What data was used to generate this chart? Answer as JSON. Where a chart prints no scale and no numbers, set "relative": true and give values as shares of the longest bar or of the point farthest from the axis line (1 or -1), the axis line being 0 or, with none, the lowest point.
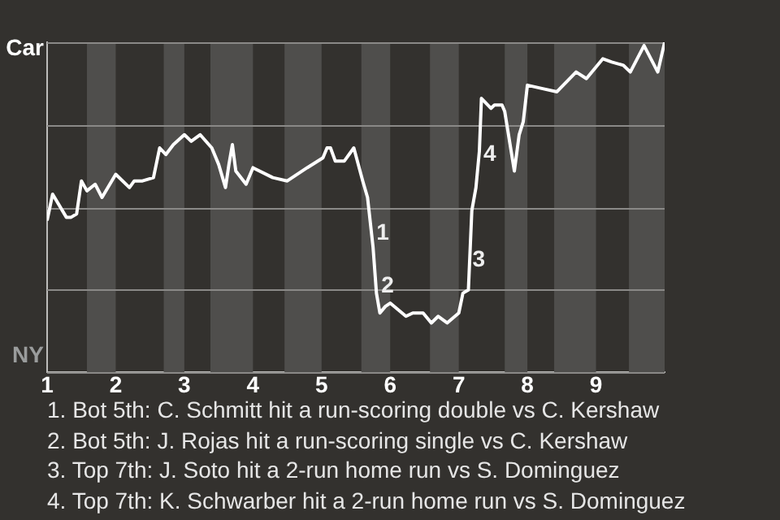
{
  "chart_data": {
    "type": "line",
    "relative": true,
    "grid": "y",
    "legend": false,
    "marker": "none",
    "line_style": "solid",
    "xlim": [
      1,
      10
    ],
    "xticks": [
      1,
      2,
      3,
      4,
      5,
      6,
      7,
      8,
      9
    ],
    "bands": [
      {
        "axis": "x",
        "from": 1.58,
        "to": 2,
        "color": "#4f4e4c"
      },
      {
        "axis": "x",
        "from": 2.7,
        "to": 3,
        "color": "#4f4e4c"
      },
      {
        "axis": "x",
        "from": 3.38,
        "to": 4,
        "color": "#4f4e4c"
      },
      {
        "axis": "x",
        "from": 4.46,
        "to": 5,
        "color": "#4f4e4c"
      },
      {
        "axis": "x",
        "from": 5.58,
        "to": 6,
        "color": "#4f4e4c"
      },
      {
        "axis": "x",
        "from": 6.58,
        "to": 7,
        "color": "#4f4e4c"
      },
      {
        "axis": "x",
        "from": 7.67,
        "to": 8,
        "color": "#4f4e4c"
      },
      {
        "axis": "x",
        "from": 8.39,
        "to": 9,
        "color": "#4f4e4c"
      },
      {
        "axis": "x",
        "from": 9.48,
        "to": 10,
        "color": "#4f4e4c"
      }
    ],
    "series": [
      {
        "color": "#ffffff",
        "x": [
          1,
          1.08,
          1.28,
          1.35,
          1.43,
          1.5,
          1.58,
          1.7,
          1.8,
          2,
          2.2,
          2.27,
          2.39,
          2.55,
          2.64,
          2.73,
          2.84,
          3,
          3.1,
          3.23,
          3.4,
          3.5,
          3.6,
          3.65,
          3.7,
          3.75,
          3.9,
          4,
          4.29,
          4.5,
          4.79,
          5.02,
          5.08,
          5.13,
          5.2,
          5.33,
          5.47,
          5.6,
          5.67,
          5.75,
          5.8,
          5.85,
          5.93,
          6,
          6.23,
          6.33,
          6.48,
          6.6,
          6.7,
          6.83,
          7,
          7.06,
          7.14,
          7.19,
          7.25,
          7.3,
          7.33,
          7.47,
          7.52,
          7.63,
          7.67,
          7.81,
          7.88,
          7.94,
          8,
          8.21,
          8.43,
          8.71,
          8.86,
          9.1,
          9.23,
          9.4,
          9.5,
          9.7,
          9.9,
          10
        ],
        "values": [
          0.46,
          0.54,
          0.47,
          0.47,
          0.48,
          0.58,
          0.55,
          0.57,
          0.53,
          0.6,
          0.56,
          0.58,
          0.58,
          0.59,
          0.68,
          0.66,
          0.69,
          0.72,
          0.7,
          0.72,
          0.68,
          0.63,
          0.56,
          0.63,
          0.69,
          0.61,
          0.57,
          0.62,
          0.59,
          0.58,
          0.62,
          0.65,
          0.68,
          0.68,
          0.64,
          0.64,
          0.68,
          0.58,
          0.53,
          0.38,
          0.24,
          0.18,
          0.2,
          0.21,
          0.17,
          0.18,
          0.18,
          0.15,
          0.17,
          0.15,
          0.18,
          0.24,
          0.25,
          0.49,
          0.56,
          0.67,
          0.83,
          0.8,
          0.81,
          0.81,
          0.79,
          0.61,
          0.72,
          0.76,
          0.87,
          0.86,
          0.85,
          0.91,
          0.89,
          0.95,
          0.94,
          0.93,
          0.91,
          0.99,
          0.91,
          1
        ]
      }
    ],
    "annotations": [
      "Car",
      "NY",
      {
        "text": "1",
        "x": 5.8,
        "y": 0.42
      },
      {
        "text": "2",
        "x": 5.87,
        "y": 0.26
      },
      {
        "text": "3",
        "x": 7.2,
        "y": 0.34
      },
      {
        "text": "4",
        "x": 7.36,
        "y": 0.66
      },
      "1. Bot 5th: C. Schmitt hit a run-scoring double vs C. Kershaw",
      "2. Bot 5th: J. Rojas hit a run-scoring single vs C. Kershaw",
      "3. Top 7th: J. Soto hit a 2-run home run vs S. Dominguez",
      "4. Top 7th: K. Schwarber hit a 2-run home run vs S. Dominguez"
    ]
  }
}
